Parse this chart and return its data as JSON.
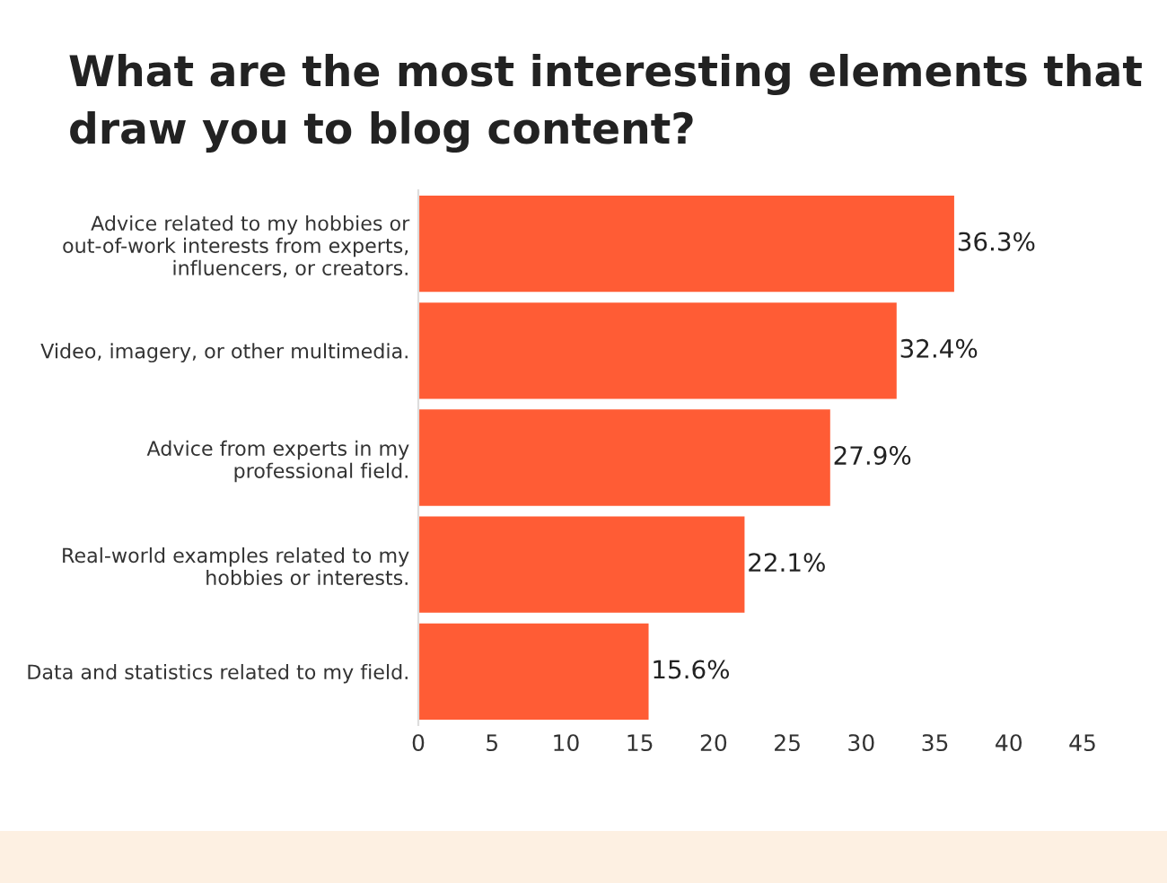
{
  "chart_data": {
    "type": "bar",
    "orientation": "horizontal",
    "title": "What are the most interesting elements that\ndraw you to blog content?",
    "categories": [
      "Advice related to my hobbies or\nout-of-work interests from experts,\ninfluencers, or creators.",
      "Video, imagery, or other multimedia.",
      "Advice from experts in my\nprofessional field.",
      "Real-world examples related to my\nhobbies or interests.",
      "Data and statistics related to my field."
    ],
    "values": [
      36.3,
      32.4,
      27.9,
      22.1,
      15.6
    ],
    "value_labels": [
      "36.3%",
      "32.4%",
      "27.9%",
      "22.1%",
      "15.6%"
    ],
    "color": "#ff5c35",
    "xlim": [
      0,
      45
    ],
    "xticks": [
      0,
      5,
      10,
      15,
      20,
      25,
      30,
      35,
      40,
      45
    ],
    "grid": false,
    "legend": false
  }
}
